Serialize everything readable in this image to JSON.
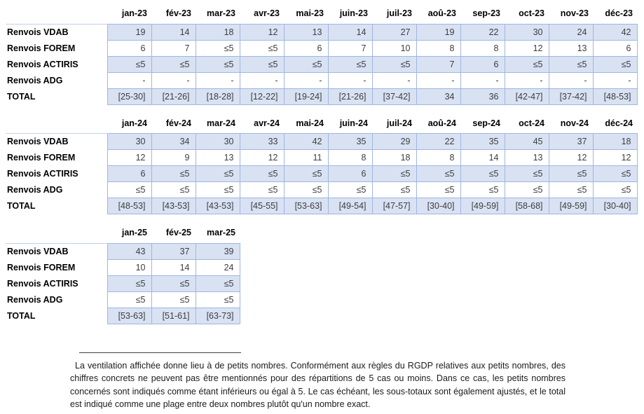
{
  "document": {
    "tables": [
      {
        "year": "2023",
        "columns": [
          "jan-23",
          "fév-23",
          "mar-23",
          "avr-23",
          "mai-23",
          "juin-23",
          "juil-23",
          "aoû-23",
          "sep-23",
          "oct-23",
          "nov-23",
          "déc-23"
        ],
        "rows": [
          {
            "label": "Renvois VDAB",
            "values": [
              "19",
              "14",
              "18",
              "12",
              "13",
              "14",
              "27",
              "19",
              "22",
              "30",
              "24",
              "42"
            ]
          },
          {
            "label": "Renvois FOREM",
            "values": [
              "6",
              "7",
              "≤5",
              "≤5",
              "6",
              "7",
              "10",
              "8",
              "8",
              "12",
              "13",
              "6"
            ]
          },
          {
            "label": "Renvois ACTIRIS",
            "values": [
              "≤5",
              "≤5",
              "≤5",
              "≤5",
              "≤5",
              "≤5",
              "≤5",
              "7",
              "6",
              "≤5",
              "≤5",
              "≤5"
            ]
          },
          {
            "label": "Renvois ADG",
            "values": [
              "-",
              "-",
              "-",
              "-",
              "-",
              "-",
              "-",
              "-",
              "-",
              "-",
              "-",
              "-"
            ]
          },
          {
            "label": "TOTAL",
            "values": [
              "[25-30]",
              "[21-26]",
              "[18-28]",
              "[12-22]",
              "[19-24]",
              "[21-26]",
              "[37-42]",
              "34",
              "36",
              "[42-47]",
              "[37-42]",
              "[48-53]"
            ]
          }
        ]
      },
      {
        "year": "2024",
        "columns": [
          "jan-24",
          "fév-24",
          "mar-24",
          "avr-24",
          "mai-24",
          "juin-24",
          "juil-24",
          "aoû-24",
          "sep-24",
          "oct-24",
          "nov-24",
          "déc-24"
        ],
        "rows": [
          {
            "label": "Renvois VDAB",
            "values": [
              "30",
              "34",
              "30",
              "33",
              "42",
              "35",
              "29",
              "22",
              "35",
              "45",
              "37",
              "18"
            ]
          },
          {
            "label": "Renvois FOREM",
            "values": [
              "12",
              "9",
              "13",
              "12",
              "11",
              "8",
              "18",
              "8",
              "14",
              "13",
              "12",
              "12"
            ]
          },
          {
            "label": "Renvois ACTIRIS",
            "values": [
              "6",
              "≤5",
              "≤5",
              "≤5",
              "≤5",
              "6",
              "≤5",
              "≤5",
              "≤5",
              "≤5",
              "≤5",
              "≤5"
            ]
          },
          {
            "label": "Renvois ADG",
            "values": [
              "≤5",
              "≤5",
              "≤5",
              "≤5",
              "≤5",
              "≤5",
              "≤5",
              "≤5",
              "≤5",
              "≤5",
              "≤5",
              "≤5"
            ]
          },
          {
            "label": "TOTAL",
            "values": [
              "[48-53]",
              "[43-53]",
              "[43-53]",
              "[45-55]",
              "[53-63]",
              "[49-54]",
              "[47-57]",
              "[30-40]",
              "[49-59]",
              "[58-68]",
              "[49-59]",
              "[30-40]"
            ]
          }
        ]
      },
      {
        "year": "2025",
        "columns": [
          "jan-25",
          "fév-25",
          "mar-25"
        ],
        "rows": [
          {
            "label": "Renvois VDAB",
            "values": [
              "43",
              "37",
              "39"
            ]
          },
          {
            "label": "Renvois FOREM",
            "values": [
              "10",
              "14",
              "24"
            ]
          },
          {
            "label": "Renvois ACTIRIS",
            "values": [
              "≤5",
              "≤5",
              "≤5"
            ]
          },
          {
            "label": "Renvois ADG",
            "values": [
              "≤5",
              "≤5",
              "≤5"
            ]
          },
          {
            "label": "TOTAL",
            "values": [
              "[53-63]",
              "[51-61]",
              "[63-73]"
            ]
          }
        ]
      }
    ],
    "footnote": "La ventilation affichée donne lieu à de petits nombres. Conformément aux règles du RGDP relatives aux petits nombres, des chiffres concrets ne peuvent pas être mentionnés pour des répartitions de 5 cas ou moins. Dans ce cas, les petits nombres concernés sont indiqués comme étant inférieurs ou égal à 5. Le cas échéant, les sous-totaux sont également ajustés, et le total est indiqué comme une plage entre deux nombres plutôt qu'un nombre exact."
  },
  "colors": {
    "row_fill": "#D9E2F3",
    "cell_border": "#9FB6DF",
    "label_top_border": "#C3CFE2"
  }
}
